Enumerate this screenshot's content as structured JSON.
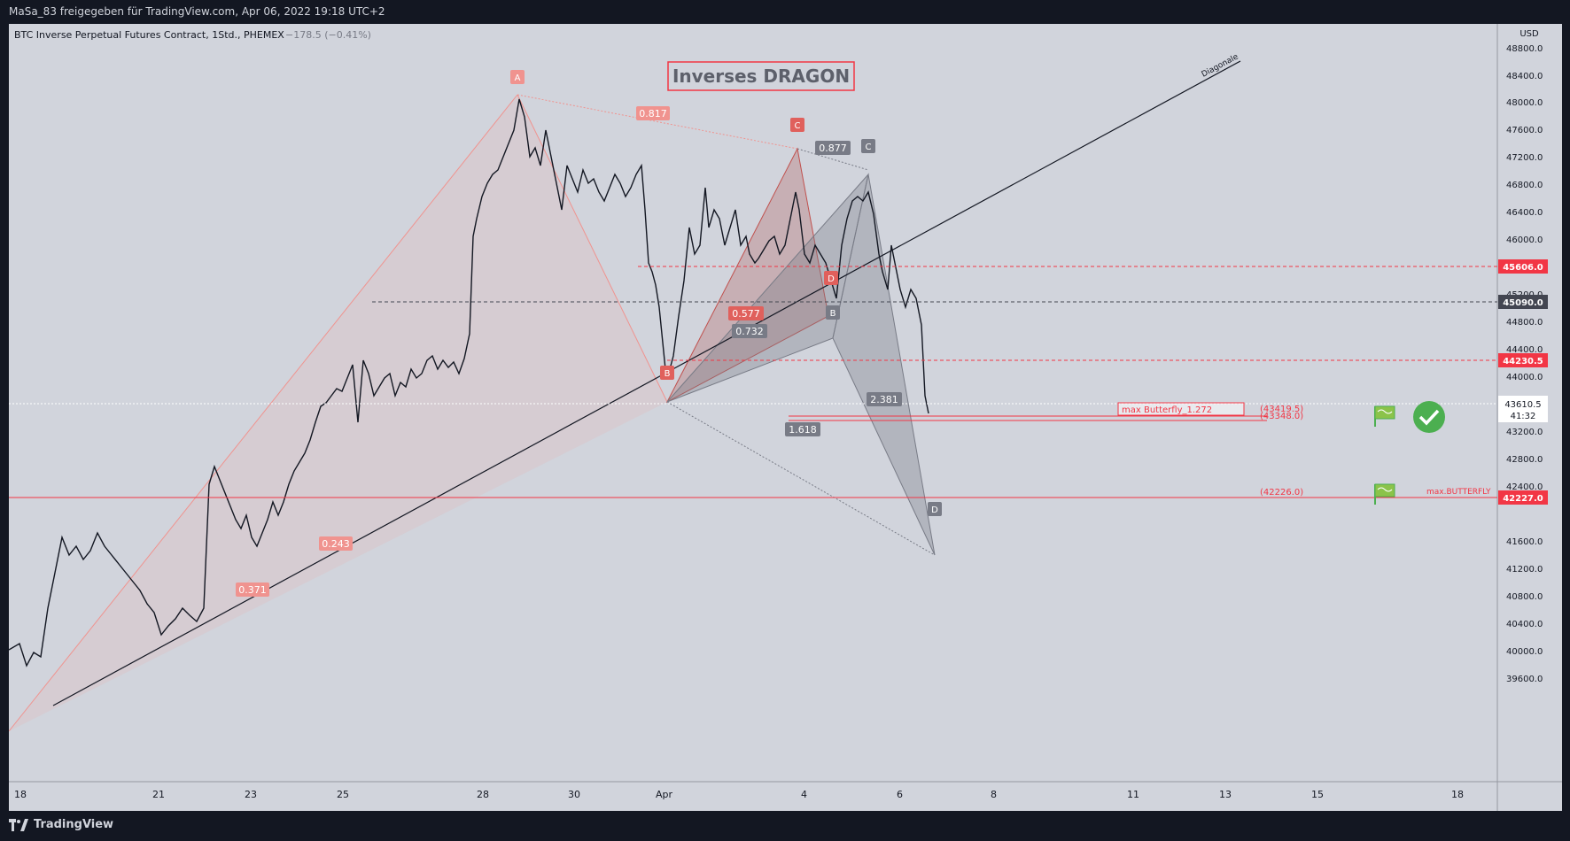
{
  "header": {
    "share_text": "MaSa_83 freigegeben für TradingView.com, Apr 06, 2022 19:18 UTC+2"
  },
  "symbol": {
    "name": "BTC Inverse Perpetual Futures Contract, 1Std., PHEMEX",
    "change": "−178.5 (−0.41%)"
  },
  "title_box": "Inverses DRAGON",
  "diagonal_label": "Diagonale",
  "price_axis": {
    "currency": "USD",
    "ticks": [
      "48800.0",
      "48400.0",
      "48000.0",
      "47600.0",
      "47200.0",
      "46800.0",
      "46400.0",
      "46000.0",
      "45200.0",
      "44800.0",
      "44400.0",
      "44000.0",
      "43200.0",
      "42800.0",
      "42400.0",
      "41600.0",
      "41200.0",
      "40800.0",
      "40400.0",
      "40000.0",
      "39600.0"
    ],
    "tags": [
      {
        "text": "45606.0",
        "color": "#f23645"
      },
      {
        "text": "45090.0",
        "color": "#434651"
      },
      {
        "text": "44230.5",
        "color": "#f23645"
      },
      {
        "text": "42227.0",
        "color": "#f23645"
      }
    ],
    "last_price": "43610.5",
    "countdown": "41:32"
  },
  "time_axis": {
    "ticks": [
      "18",
      "21",
      "23",
      "25",
      "28",
      "30",
      "Apr",
      "4",
      "6",
      "8",
      "11",
      "13",
      "15",
      "18"
    ]
  },
  "pattern_labels": {
    "red_points": [
      "A",
      "B",
      "C",
      "D"
    ],
    "gray_points": [
      "B",
      "C",
      "D"
    ]
  },
  "ratios": [
    "0.817",
    "0.877",
    "0.577",
    "0.732",
    "2.381",
    "1.618",
    "0.243",
    "0.371"
  ],
  "annotations": {
    "butterfly_box": "max Butterfly_1.272",
    "level_1": "(43419.5)",
    "level_2": "(43348.0)",
    "level_3": "(42226.0)",
    "max_butterfly": "max.BUTTERFLY"
  },
  "footer": {
    "brand": "TradingView"
  },
  "colors": {
    "background": "#d1d4dc",
    "chrome": "#131722",
    "red": "#f23645",
    "gray": "#787b86",
    "green_check": "#4caf50"
  }
}
